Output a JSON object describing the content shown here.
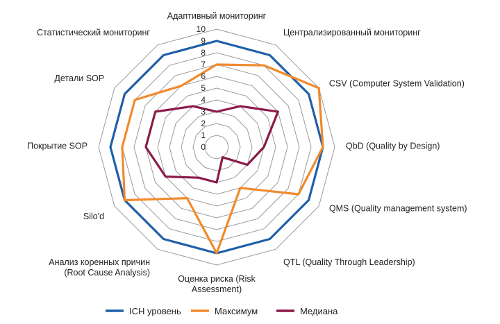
{
  "chart_data": {
    "type": "radar",
    "axes": [
      "Адаптивный мониторинг",
      "Централизированный мониторинг",
      "CSV (Computer System Validation)",
      "QbD (Quality by Design)",
      "QMS (Quality management system)",
      "QTL  (Quality Through Leadership)",
      "Оценка риска (Risk Assessment)",
      "Анализ коренных причин (Root Cause Analysis)",
      "Silo'd",
      "Покрытие SOP",
      "Детали SOP",
      "Статистический мониторинг"
    ],
    "axis_label_lines": [
      [
        "Адаптивный мониторинг"
      ],
      [
        "Централизированный мониторинг"
      ],
      [
        "CSV (Computer System Validation)"
      ],
      [
        "QbD (Quality by Design)"
      ],
      [
        "QMS (Quality management system)"
      ],
      [
        "QTL  (Quality Through Leadership)"
      ],
      [
        "Оценка риска (Risk",
        "Assessment)"
      ],
      [
        "Анализ коренных причин",
        "(Root Cause Analysis)"
      ],
      [
        "Silo'd"
      ],
      [
        "Покрытие SOP"
      ],
      [
        "Детали SOP"
      ],
      [
        "Статистический мониторинг"
      ]
    ],
    "r_ticks": [
      "0",
      "1",
      "2",
      "3",
      "4",
      "5",
      "6",
      "7",
      "8",
      "9",
      "10"
    ],
    "rlim": [
      0,
      10
    ],
    "grid": true,
    "legend_position": "bottom",
    "series": [
      {
        "name": "ICH уровень",
        "color": "#1F5FA8",
        "values": [
          9,
          9,
          9,
          9,
          9,
          9,
          9,
          9,
          9,
          9,
          9,
          9
        ]
      },
      {
        "name": "Максимум",
        "color": "#F08A2C",
        "values": [
          7,
          8,
          10,
          9,
          8,
          4,
          9,
          5,
          9,
          8,
          8,
          6
        ]
      },
      {
        "name": "Медиана",
        "color": "#8B1A4A",
        "values": [
          3,
          4,
          6,
          4,
          3,
          1,
          3,
          3,
          5,
          6,
          6,
          4
        ]
      }
    ]
  }
}
